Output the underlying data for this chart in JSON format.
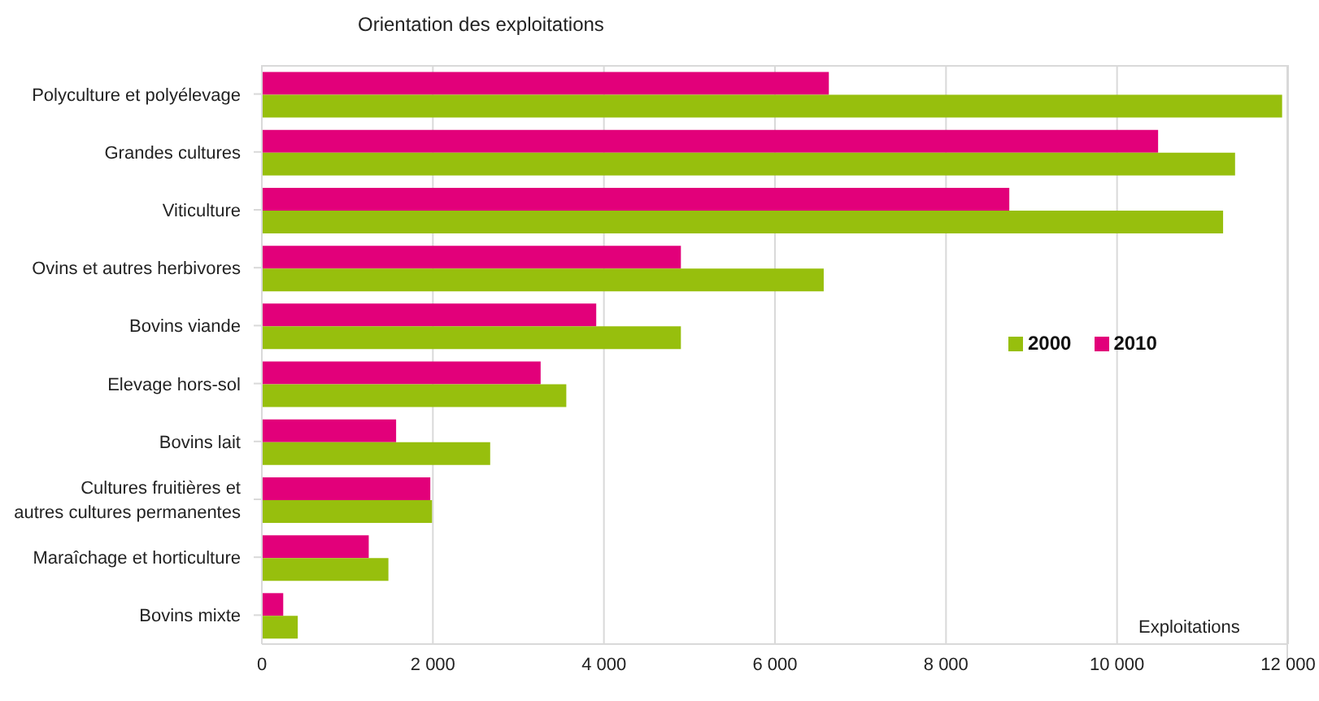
{
  "chart_data": {
    "type": "bar",
    "orientation": "horizontal",
    "title": "Orientation des exploitations",
    "xlabel": "Exploitations",
    "categories": [
      "Polyculture et polyélevage",
      "Grandes cultures",
      "Viticulture",
      "Ovins et autres herbivores",
      "Bovins viande",
      "Elevage hors-sol",
      "Bovins lait",
      "Cultures fruitières et autres cultures permanentes",
      "Maraîchage et horticulture",
      "Bovins mixte"
    ],
    "series": [
      {
        "name": "2000",
        "color": "#97bf0d",
        "values": [
          11930,
          11380,
          11240,
          6570,
          4900,
          3560,
          2670,
          1990,
          1480,
          420
        ]
      },
      {
        "name": "2010",
        "color": "#e2007a",
        "values": [
          6630,
          10480,
          8740,
          4900,
          3910,
          3260,
          1570,
          1970,
          1250,
          250
        ]
      }
    ],
    "xlim": [
      0,
      12000
    ],
    "xticks": [
      {
        "value": 0,
        "label": "0"
      },
      {
        "value": 2000,
        "label": "2 000"
      },
      {
        "value": 4000,
        "label": "4 000"
      },
      {
        "value": 6000,
        "label": "6 000"
      },
      {
        "value": 8000,
        "label": "8 000"
      },
      {
        "value": 10000,
        "label": "10 000"
      },
      {
        "value": 12000,
        "label": "12 000"
      }
    ],
    "grid": "x",
    "legend": "right"
  }
}
